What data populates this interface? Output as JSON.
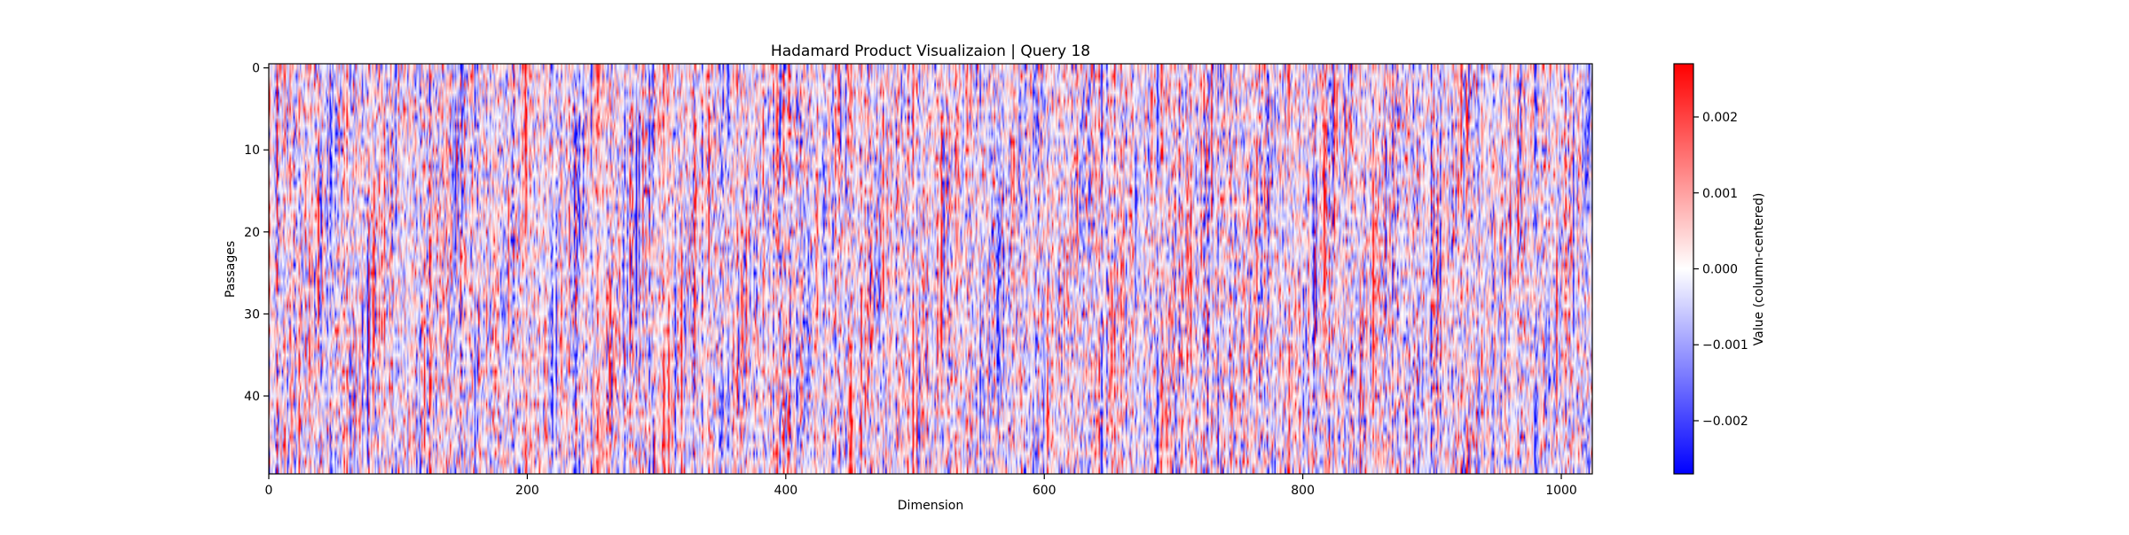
{
  "chart_data": {
    "type": "heatmap",
    "title": "Hadamard Product Visualizaion | Query 18",
    "xlabel": "Dimension",
    "ylabel": "Passages",
    "colorbar_label": "Value (column-centered)",
    "colormap": "bwr",
    "colors": {
      "low": "#0000ff",
      "mid": "#ffffff",
      "high": "#ff0000"
    },
    "value_range": [
      -0.0027,
      0.0027
    ],
    "xlim": [
      0,
      1024
    ],
    "ylim": [
      50,
      0
    ],
    "x_ticks": [
      0,
      200,
      400,
      600,
      800,
      1000
    ],
    "x_tick_labels": [
      "0",
      "200",
      "400",
      "600",
      "800",
      "1000"
    ],
    "y_ticks": [
      0,
      10,
      20,
      30,
      40
    ],
    "y_tick_labels": [
      "0",
      "10",
      "20",
      "30",
      "40"
    ],
    "colorbar_ticks": [
      0.002,
      0.001,
      0.0,
      -0.001,
      -0.002
    ],
    "colorbar_tick_labels": [
      "0.002",
      "0.001",
      "0.000",
      "−0.001",
      "−0.002"
    ],
    "dimensions": 1024,
    "passages": 50
  }
}
